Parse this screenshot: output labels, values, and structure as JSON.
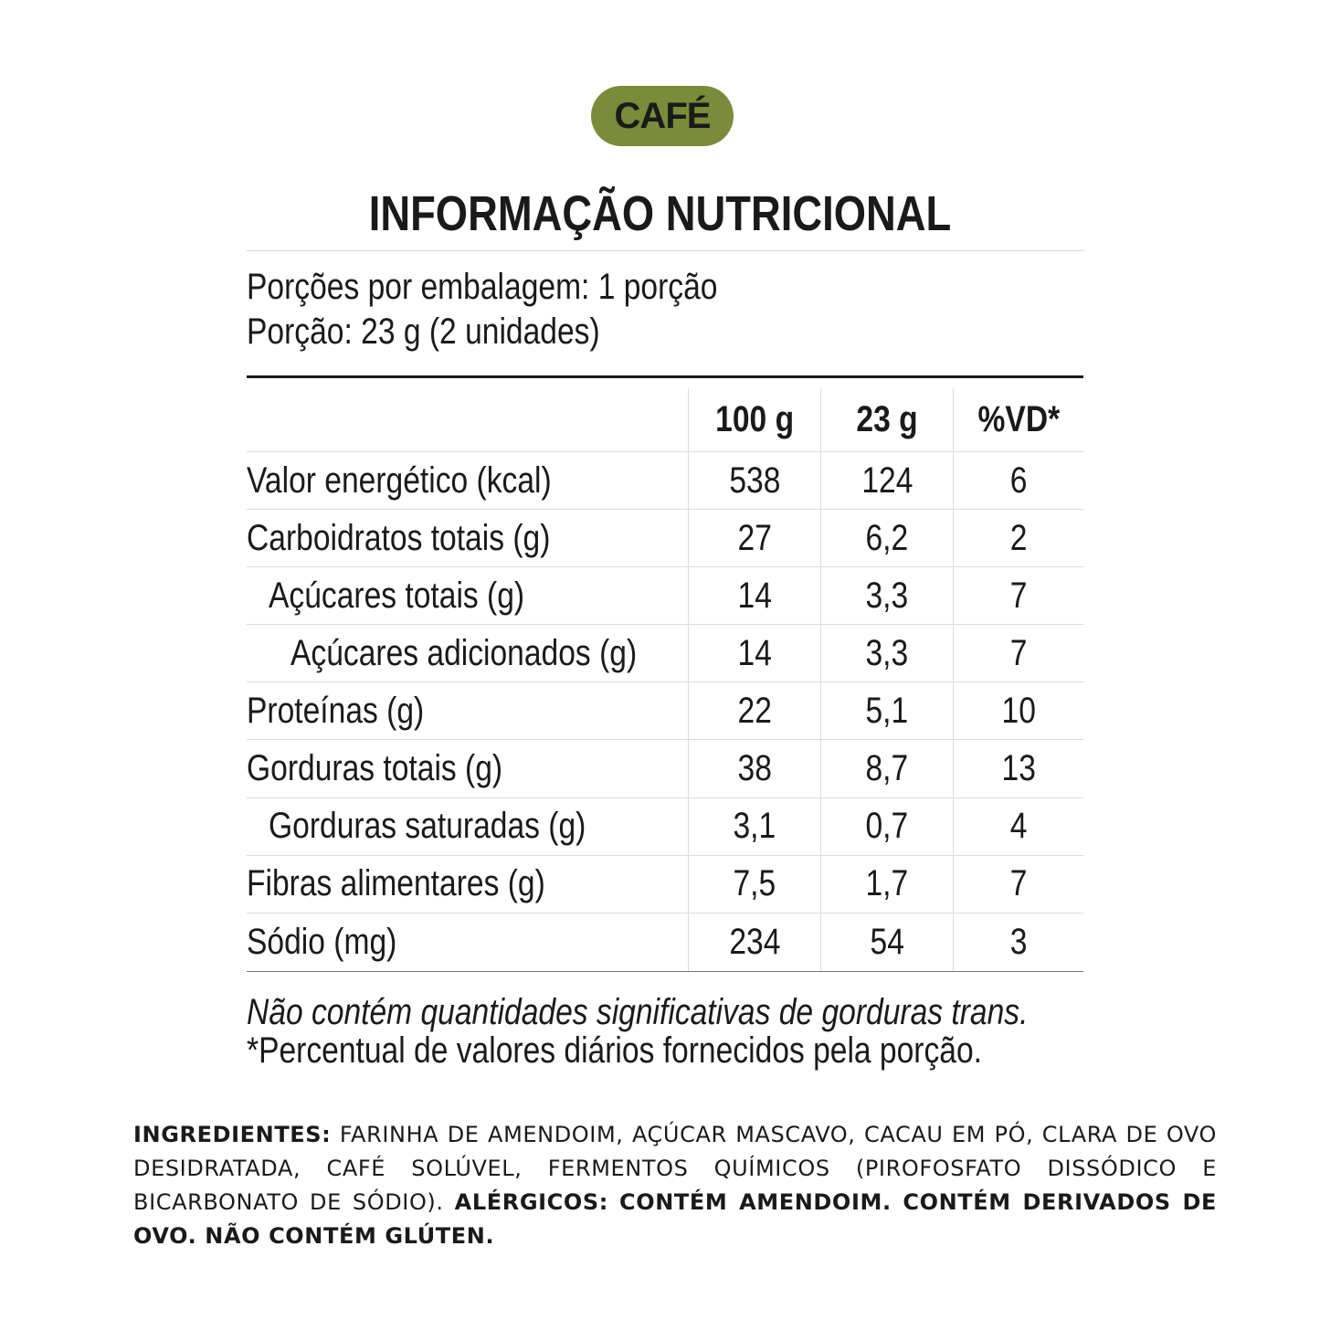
{
  "badge": "CAFÉ",
  "title": "INFORMAÇÃO NUTRICIONAL",
  "serving": {
    "portions": "Porções por embalagem: 1 porção",
    "portion": "Porção: 23 g (2 unidades)"
  },
  "table": {
    "header": [
      "100 g",
      "23 g",
      "%VD*"
    ],
    "rows": [
      [
        "Valor energético (kcal)",
        "538",
        "124",
        "6"
      ],
      [
        "Carboidratos totais (g)",
        "27",
        "6,2",
        "2"
      ],
      [
        "Açúcares totais (g)",
        "14",
        "3,3",
        "7"
      ],
      [
        "Açúcares adicionados (g)",
        "14",
        "3,3",
        "7"
      ],
      [
        "Proteínas (g)",
        "22",
        "5,1",
        "10"
      ],
      [
        "Gorduras totais (g)",
        "38",
        "8,7",
        "13"
      ],
      [
        "Gorduras saturadas (g)",
        "3,1",
        "0,7",
        "4"
      ],
      [
        "Fibras alimentares (g)",
        "7,5",
        "1,7",
        "7"
      ],
      [
        "Sódio (mg)",
        "234",
        "54",
        "3"
      ]
    ]
  },
  "notes": [
    "Não contém quantidades significativas de gorduras trans.",
    "*Percentual de valores diários fornecidos pela porção."
  ],
  "ingredients": {
    "label": "INGREDIENTES:",
    "text": "FARINHA DE AMENDOIM, AÇÚCAR MASCAVO, CACAU EM PÓ, CLARA DE OVO DESIDRATADA, CAFÉ SOLÚVEL, FERMENTOS QUÍMICOS (PIROFOSFATO DISSÓDICO E BICARBONATO DE SÓDIO)."
  },
  "allergens": {
    "label": "ALÉRGICOS:",
    "text": "CONTÉM AMENDOIM. CONTÉM DERIVADOS DE OVO. NÃO CONTÉM GLÚTEN."
  }
}
